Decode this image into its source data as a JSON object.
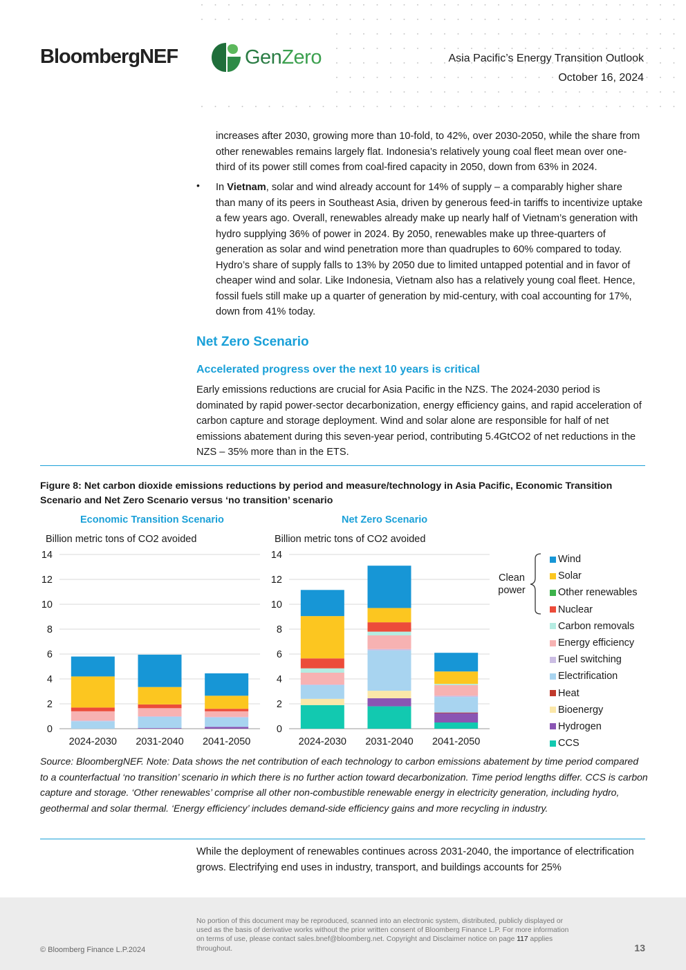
{
  "header": {
    "bnef_logo": "BloombergNEF",
    "genzero_logo_a": "Gen",
    "genzero_logo_b": "Zero",
    "report_title": "Asia Pacific’s Energy Transition Outlook",
    "date": "October 16, 2024"
  },
  "body": {
    "para_indonesia_cont": "increases after 2030, growing more than 10-fold, to 42%, over 2030-2050, while the share from other renewables remains largely flat. Indonesia’s relatively young coal fleet mean over one-third of its power still comes from coal-fired capacity in 2050, down from 63% in 2024.",
    "bullet_char": "•",
    "vietnam_prefix": "In ",
    "vietnam_bold": "Vietnam",
    "vietnam_text": ", solar and wind already account for 14% of supply – a comparably higher share than many of its peers in Southeast Asia, driven by generous feed-in tariffs to incentivize uptake a few years ago. Overall, renewables already make up nearly half of Vietnam’s generation with hydro supplying 36% of power in 2024. By 2050, renewables make up three-quarters of generation as solar and wind penetration more than quadruples to 60% compared to today. Hydro’s share of supply falls to 13% by 2050 due to limited untapped potential and in favor of cheaper wind and solar. Like Indonesia, Vietnam also has a relatively young coal fleet. Hence, fossil fuels still make up a quarter of generation by mid-century, with coal accounting for 17%, down from 41% today.",
    "section_heading": "Net Zero Scenario",
    "sub_heading": "Accelerated progress over the next 10 years is critical",
    "para_nzs": "Early emissions reductions are crucial for Asia Pacific in the NZS. The 2024-2030 period is dominated by rapid power-sector decarbonization, energy efficiency gains, and rapid acceleration of carbon capture and storage deployment. Wind and solar alone are responsible for half of net emissions abatement during this seven-year period, contributing 5.4GtCO2 of net reductions in the NZS – 35% more than in the ETS.",
    "para_after": "While the deployment of renewables continues across 2031-2040, the importance of electrification grows. Electrifying end uses in industry, transport, and buildings accounts for 25%"
  },
  "figure": {
    "caption": "Figure 8: Net carbon dioxide emissions reductions by period and measure/technology in Asia Pacific, Economic Transition Scenario and Net Zero Scenario versus ‘no transition’ scenario",
    "clean_power_label": "Clean power",
    "source": "Source: BloombergNEF. Note: Data shows the net contribution of each technology to carbon emissions abatement by time period compared to a counterfactual ‘no transition’ scenario in which there is no further action toward decarbonization. Time period lengths differ. CCS is carbon capture and storage. ‘Other renewables’ comprise all other non-combustible renewable energy in electricity generation, including hydro, geothermal and solar thermal. ‘Energy efficiency’ includes demand-side efficiency gains and more recycling in industry."
  },
  "chart_data": [
    {
      "type": "bar",
      "stacked": true,
      "title": "Economic Transition Scenario",
      "ylabel": "Billion metric tons of CO2 avoided",
      "ylim": [
        0,
        14
      ],
      "yticks": [
        0,
        2,
        4,
        6,
        8,
        10,
        12,
        14
      ],
      "categories": [
        "2024-2030",
        "2031-2040",
        "2041-2050"
      ],
      "series": [
        {
          "name": "CCS",
          "color": "#12c9b0",
          "values": [
            0,
            0,
            0
          ]
        },
        {
          "name": "Hydrogen",
          "color": "#8a55b3",
          "values": [
            0,
            0.05,
            0.15
          ]
        },
        {
          "name": "Bioenergy",
          "color": "#fbe7a8",
          "values": [
            0,
            0,
            0
          ]
        },
        {
          "name": "Heat",
          "color": "#c0392b",
          "values": [
            0,
            0,
            0
          ]
        },
        {
          "name": "Electrification",
          "color": "#a8d4f0",
          "values": [
            0.6,
            0.9,
            0.75
          ]
        },
        {
          "name": "Fuel switching",
          "color": "#cbbde3",
          "values": [
            0.05,
            0.05,
            0.05
          ]
        },
        {
          "name": "Energy efficiency",
          "color": "#f7b2b2",
          "values": [
            0.75,
            0.65,
            0.45
          ]
        },
        {
          "name": "Carbon removals",
          "color": "#b5ece2",
          "values": [
            0,
            0,
            0
          ]
        },
        {
          "name": "Nuclear",
          "color": "#ec4c3a",
          "values": [
            0.3,
            0.3,
            0.2
          ]
        },
        {
          "name": "Other renewables",
          "color": "#3cb34a",
          "values": [
            0,
            0,
            0
          ]
        },
        {
          "name": "Solar",
          "color": "#fcc620",
          "values": [
            2.5,
            1.4,
            1.05
          ]
        },
        {
          "name": "Wind",
          "color": "#1796d6",
          "values": [
            1.6,
            2.6,
            1.8
          ]
        }
      ]
    },
    {
      "type": "bar",
      "stacked": true,
      "title": "Net Zero Scenario",
      "ylabel": "Billion metric tons of CO2 avoided",
      "ylim": [
        0,
        14
      ],
      "yticks": [
        0,
        2,
        4,
        6,
        8,
        10,
        12,
        14
      ],
      "categories": [
        "2024-2030",
        "2031-2040",
        "2041-2050"
      ],
      "series": [
        {
          "name": "CCS",
          "color": "#12c9b0",
          "values": [
            1.9,
            1.8,
            0.5
          ]
        },
        {
          "name": "Hydrogen",
          "color": "#8a55b3",
          "values": [
            0,
            0.65,
            0.75
          ]
        },
        {
          "name": "Bioenergy",
          "color": "#fbe7a8",
          "values": [
            0.5,
            0.6,
            0
          ]
        },
        {
          "name": "Heat",
          "color": "#c0392b",
          "values": [
            0,
            0,
            0.05
          ]
        },
        {
          "name": "Electrification",
          "color": "#a8d4f0",
          "values": [
            1.1,
            3.25,
            1.25
          ]
        },
        {
          "name": "Fuel switching",
          "color": "#cbbde3",
          "values": [
            0.05,
            0.1,
            0.1
          ]
        },
        {
          "name": "Energy efficiency",
          "color": "#f7b2b2",
          "values": [
            0.95,
            1.1,
            0.85
          ]
        },
        {
          "name": "Carbon removals",
          "color": "#b5ece2",
          "values": [
            0.35,
            0.3,
            0.1
          ]
        },
        {
          "name": "Nuclear",
          "color": "#ec4c3a",
          "values": [
            0.8,
            0.75,
            0
          ]
        },
        {
          "name": "Other renewables",
          "color": "#3cb34a",
          "values": [
            0,
            0,
            0
          ]
        },
        {
          "name": "Solar",
          "color": "#fcc620",
          "values": [
            3.4,
            1.15,
            1.0
          ]
        },
        {
          "name": "Wind",
          "color": "#1796d6",
          "values": [
            2.1,
            3.4,
            1.5
          ]
        }
      ]
    }
  ],
  "legend": [
    {
      "name": "Wind",
      "color": "#1796d6"
    },
    {
      "name": "Solar",
      "color": "#fcc620"
    },
    {
      "name": "Other renewables",
      "color": "#3cb34a"
    },
    {
      "name": "Nuclear",
      "color": "#ec4c3a"
    },
    {
      "name": "Carbon removals",
      "color": "#b5ece2"
    },
    {
      "name": "Energy efficiency",
      "color": "#f7b2b2"
    },
    {
      "name": "Fuel switching",
      "color": "#cbbde3"
    },
    {
      "name": "Electrification",
      "color": "#a8d4f0"
    },
    {
      "name": "Heat",
      "color": "#c0392b"
    },
    {
      "name": "Bioenergy",
      "color": "#fbe7a8"
    },
    {
      "name": "Hydrogen",
      "color": "#8a55b3"
    },
    {
      "name": "CCS",
      "color": "#12c9b0"
    }
  ],
  "footer": {
    "copyright": "© Bloomberg Finance L.P.2024",
    "disclaimer_a": "No portion of this document may be reproduced, scanned into an electronic system, distributed, publicly displayed or used as the basis of derivative works without the prior written consent of Bloomberg Finance L.P.  For more information on terms of use, please contact sales.bnef@bloomberg.net. Copyright and Disclaimer notice on page ",
    "disclaimer_page": "117",
    "disclaimer_b": " applies throughout.",
    "page_number": "13"
  }
}
